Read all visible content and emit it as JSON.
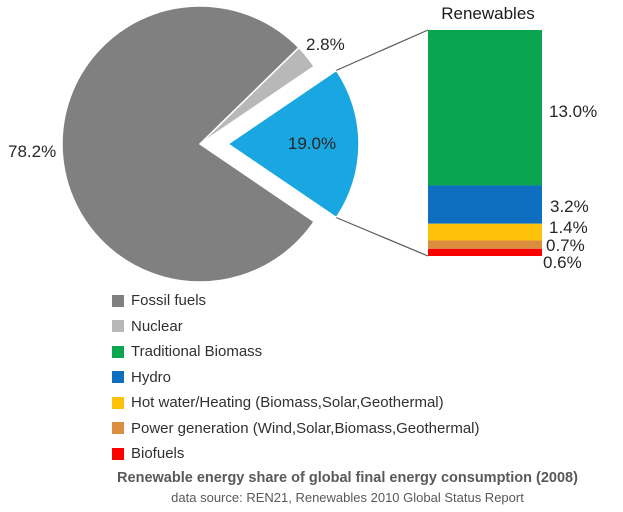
{
  "figure": {
    "caption": "Renewable energy share of global final energy consumption (2008)",
    "source": "data source: REN21, Renewables 2010 Global Status Report"
  },
  "chart_data": {
    "type": "pie",
    "title": "Renewable energy share of global final energy consumption (2008)",
    "source": "data source: REN21, Renewables 2010 Global Status Report",
    "pie": {
      "slices": [
        {
          "label": "Fossil fuels",
          "value": 78.2,
          "display": "78.2%",
          "color": "#808080",
          "exploded": false
        },
        {
          "label": "Nuclear",
          "value": 2.8,
          "display": "2.8%",
          "color": "#B8B8B8",
          "exploded": false
        },
        {
          "label": "Renewables",
          "value": 19.0,
          "display": "19.0%",
          "color": "#1AA7E1",
          "exploded": true
        }
      ]
    },
    "bar": {
      "title": "Renewables",
      "segments": [
        {
          "label": "Traditional Biomass",
          "value": 13.0,
          "display": "13.0%",
          "color": "#0AA54F"
        },
        {
          "label": "Hydro",
          "value": 3.2,
          "display": "3.2%",
          "color": "#0E6FC0"
        },
        {
          "label": "Hot water/Heating (Biomass,Solar,Geothermal)",
          "value": 1.4,
          "display": "1.4%",
          "color": "#FFC20B"
        },
        {
          "label": "Power generation (Wind,Solar,Biomass,Geothermal)",
          "value": 0.7,
          "display": "0.7%",
          "color": "#DB8E3E"
        },
        {
          "label": "Biofuels",
          "value": 0.6,
          "display": "0.6%",
          "color": "#FB0000"
        }
      ]
    },
    "legend": [
      {
        "label": "Fossil fuels",
        "color": "#808080"
      },
      {
        "label": "Nuclear",
        "color": "#B8B8B8"
      },
      {
        "label": "Traditional Biomass",
        "color": "#0AA54F"
      },
      {
        "label": "Hydro",
        "color": "#0E6FC0"
      },
      {
        "label": "Hot water/Heating (Biomass,Solar,Geothermal)",
        "color": "#FFC20B"
      },
      {
        "label": "Power generation (Wind,Solar,Biomass,Geothermal)",
        "color": "#DB8E3E"
      },
      {
        "label": "Biofuels",
        "color": "#FB0000"
      }
    ],
    "layout_hints": {
      "legend_position": "bottom-left",
      "grid": false,
      "connector_lines": true
    }
  }
}
